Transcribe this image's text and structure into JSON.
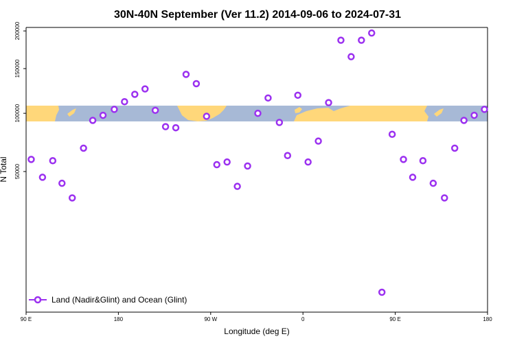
{
  "chart_data": {
    "type": "scatter",
    "title": "30N-40N September (Ver 11.2)   2014-09-06 to 2024-07-31",
    "xlabel": "Longitude (deg E)",
    "ylabel": "N Total",
    "x_ticks": [
      {
        "value": 90,
        "label": "90 E"
      },
      {
        "value": 180,
        "label": "180"
      },
      {
        "value": 270,
        "label": "90 W"
      },
      {
        "value": 360,
        "label": "0"
      },
      {
        "value": 450,
        "label": "90 E"
      },
      {
        "value": 540,
        "label": "180"
      }
    ],
    "y_ticks": [
      {
        "value": 50000,
        "label": "50000"
      },
      {
        "value": 100000,
        "label": "100000"
      },
      {
        "value": 150000,
        "label": "150000"
      },
      {
        "value": 200000,
        "label": "200000"
      }
    ],
    "xlim": [
      90,
      540
    ],
    "ylim": [
      0,
      205000
    ],
    "y_scale": "sqrt",
    "grid": false,
    "legend_position": "bottom-left",
    "background_band": {
      "description": "land/ocean map strip",
      "land_color": "#FFD77A",
      "ocean_color": "#A7B9D6"
    },
    "series": [
      {
        "name": "Land (Nadir&Glint) and Ocean (Glint)",
        "color": "#9B30F0",
        "marker": "open-circle",
        "x": [
          95,
          106,
          116,
          125,
          135,
          146,
          155,
          165,
          176,
          186,
          196,
          206,
          216,
          226,
          236,
          246,
          256,
          266,
          276,
          286,
          296,
          306,
          316,
          326,
          337,
          345,
          355,
          365,
          375,
          385,
          397,
          407,
          417,
          427,
          437,
          447,
          458,
          467,
          477,
          487,
          498,
          508,
          517,
          527,
          537
        ],
        "y": [
          59000,
          46000,
          58000,
          42000,
          33000,
          68000,
          93000,
          98000,
          104000,
          112000,
          120000,
          126000,
          103000,
          87000,
          86000,
          143000,
          132000,
          97000,
          55000,
          57000,
          40000,
          54000,
          100000,
          116000,
          91000,
          62000,
          119000,
          57000,
          74000,
          111000,
          187000,
          165000,
          187000,
          197000,
          1000,
          80000,
          59000,
          46000,
          58000,
          42000,
          33000,
          68000,
          93000,
          98000,
          104000
        ]
      }
    ]
  }
}
